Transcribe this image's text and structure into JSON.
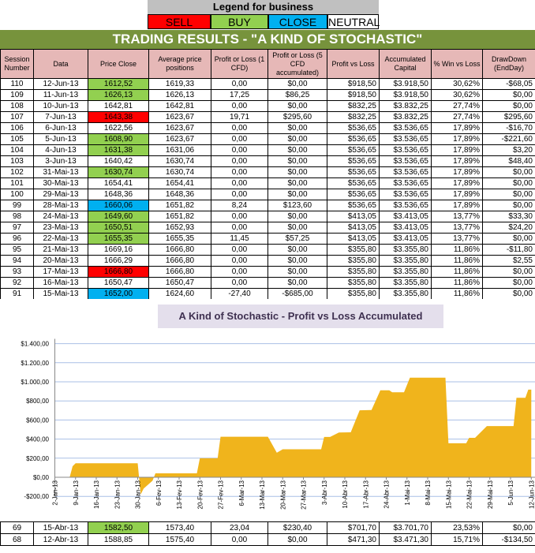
{
  "legend": {
    "title": "Legend for business",
    "items": [
      {
        "label": "SELL",
        "color": "#ff0000"
      },
      {
        "label": "BUY",
        "color": "#92d050"
      },
      {
        "label": "CLOSE",
        "color": "#00b0f0"
      },
      {
        "label": "NEUTRAL",
        "color": "#ffffff"
      }
    ]
  },
  "title": "TRADING RESULTS - \"A KIND OF STOCHASTIC\"",
  "columns": [
    "Session Number",
    "Data",
    "Price Close",
    "Average price positions",
    "Profit or Loss (1 CFD)",
    "Profit or Loss (5 CFD accumulated)",
    "Profit vs Loss",
    "Accumulated Capital",
    "% Win vs Loss",
    "DrawDown (EndDay)"
  ],
  "rows": [
    [
      "110",
      "12-Jun-13",
      "1612,52",
      "1619,33",
      "0,00",
      "$0,00",
      "$918,50",
      "$3.918,50",
      "30,62%",
      "-$68,05",
      "BUY"
    ],
    [
      "109",
      "11-Jun-13",
      "1626,13",
      "1626,13",
      "17,25",
      "$86,25",
      "$918,50",
      "$3.918,50",
      "30,62%",
      "$0,00",
      "BUY"
    ],
    [
      "108",
      "10-Jun-13",
      "1642,81",
      "1642,81",
      "0,00",
      "$0,00",
      "$832,25",
      "$3.832,25",
      "27,74%",
      "$0,00",
      "NEUTRAL"
    ],
    [
      "107",
      "7-Jun-13",
      "1643,38",
      "1623,67",
      "19,71",
      "$295,60",
      "$832,25",
      "$3.832,25",
      "27,74%",
      "$295,60",
      "SELL"
    ],
    [
      "106",
      "6-Jun-13",
      "1622,56",
      "1623,67",
      "0,00",
      "$0,00",
      "$536,65",
      "$3.536,65",
      "17,89%",
      "-$16,70",
      "NEUTRAL"
    ],
    [
      "105",
      "5-Jun-13",
      "1608,90",
      "1623,67",
      "0,00",
      "$0,00",
      "$536,65",
      "$3.536,65",
      "17,89%",
      "-$221,60",
      "BUY"
    ],
    [
      "104",
      "4-Jun-13",
      "1631,38",
      "1631,06",
      "0,00",
      "$0,00",
      "$536,65",
      "$3.536,65",
      "17,89%",
      "$3,20",
      "BUY"
    ],
    [
      "103",
      "3-Jun-13",
      "1640,42",
      "1630,74",
      "0,00",
      "$0,00",
      "$536,65",
      "$3.536,65",
      "17,89%",
      "$48,40",
      "NEUTRAL"
    ],
    [
      "102",
      "31-Mai-13",
      "1630,74",
      "1630,74",
      "0,00",
      "$0,00",
      "$536,65",
      "$3.536,65",
      "17,89%",
      "$0,00",
      "BUY"
    ],
    [
      "101",
      "30-Mai-13",
      "1654,41",
      "1654,41",
      "0,00",
      "$0,00",
      "$536,65",
      "$3.536,65",
      "17,89%",
      "$0,00",
      "NEUTRAL"
    ],
    [
      "100",
      "29-Mai-13",
      "1648,36",
      "1648,36",
      "0,00",
      "$0,00",
      "$536,65",
      "$3.536,65",
      "17,89%",
      "$0,00",
      "NEUTRAL"
    ],
    [
      "99",
      "28-Mai-13",
      "1660,06",
      "1651,82",
      "8,24",
      "$123,60",
      "$536,65",
      "$3.536,65",
      "17,89%",
      "$0,00",
      "CLOSE"
    ],
    [
      "98",
      "24-Mai-13",
      "1649,60",
      "1651,82",
      "0,00",
      "$0,00",
      "$413,05",
      "$3.413,05",
      "13,77%",
      "$33,30",
      "BUY"
    ],
    [
      "97",
      "23-Mai-13",
      "1650,51",
      "1652,93",
      "0,00",
      "$0,00",
      "$413,05",
      "$3.413,05",
      "13,77%",
      "$24,20",
      "BUY"
    ],
    [
      "96",
      "22-Mai-13",
      "1655,35",
      "1655,35",
      "11,45",
      "$57,25",
      "$413,05",
      "$3.413,05",
      "13,77%",
      "$0,00",
      "BUY"
    ],
    [
      "95",
      "21-Mai-13",
      "1669,16",
      "1666,80",
      "0,00",
      "$0,00",
      "$355,80",
      "$3.355,80",
      "11,86%",
      "-$11,80",
      "NEUTRAL"
    ],
    [
      "94",
      "20-Mai-13",
      "1666,29",
      "1666,80",
      "0,00",
      "$0,00",
      "$355,80",
      "$3.355,80",
      "11,86%",
      "$2,55",
      "NEUTRAL"
    ],
    [
      "93",
      "17-Mai-13",
      "1666,80",
      "1666,80",
      "0,00",
      "$0,00",
      "$355,80",
      "$3.355,80",
      "11,86%",
      "$0,00",
      "SELL"
    ],
    [
      "92",
      "16-Mai-13",
      "1650,47",
      "1650,47",
      "0,00",
      "$0,00",
      "$355,80",
      "$3.355,80",
      "11,86%",
      "$0,00",
      "NEUTRAL"
    ],
    [
      "91",
      "15-Mai-13",
      "1652,00",
      "1624,60",
      "-27,40",
      "-$685,00",
      "$355,80",
      "$3.355,80",
      "11,86%",
      "$0,00",
      "CLOSE"
    ]
  ],
  "bottom_rows": [
    [
      "69",
      "15-Abr-13",
      "1582,50",
      "1573,40",
      "23,04",
      "$230,40",
      "$701,70",
      "$3.701,70",
      "23,53%",
      "$0,00",
      "BUY"
    ],
    [
      "68",
      "12-Abr-13",
      "1588,85",
      "1575,40",
      "0,00",
      "$0,00",
      "$471,30",
      "$3.471,30",
      "15,71%",
      "-$134,50",
      "NEUTRAL"
    ]
  ],
  "chart_data": {
    "type": "area",
    "title": "A Kind of Stochastic - Profit vs Loss Accumulated",
    "color": "#f0b41c",
    "grid": true,
    "ylim": [
      -200,
      1400
    ],
    "yticks": [
      "-$200,00",
      "$0,00",
      "$200,00",
      "$400,00",
      "$600,00",
      "$800,00",
      "$1.000,00",
      "$1.200,00",
      "$1.400,00"
    ],
    "xlim": [
      "2013-01-02",
      "2013-06-12"
    ],
    "xticks": [
      "2-Jan-13",
      "9-Jan-13",
      "16-Jan-13",
      "23-Jan-13",
      "30-Jan-13",
      "6-Fev-13",
      "13-Fev-13",
      "20-Fev-13",
      "27-Fev-13",
      "6-Mar-13",
      "13-Mar-13",
      "20-Mar-13",
      "27-Mar-13",
      "3-Abr-13",
      "10-Abr-13",
      "17-Abr-13",
      "24-Abr-13",
      "1-Mai-13",
      "8-Mai-13",
      "15-Mai-13",
      "22-Mai-13",
      "29-Mai-13",
      "5-Jun-13",
      "12-Jun-13"
    ],
    "x": [
      "2013-01-02",
      "2013-01-07",
      "2013-01-08",
      "2013-01-09",
      "2013-01-30",
      "2013-01-31",
      "2013-02-01",
      "2013-02-04",
      "2013-02-05",
      "2013-02-19",
      "2013-02-20",
      "2013-02-26",
      "2013-02-27",
      "2013-03-15",
      "2013-03-18",
      "2013-03-20",
      "2013-04-02",
      "2013-04-03",
      "2013-04-05",
      "2013-04-08",
      "2013-04-12",
      "2013-04-15",
      "2013-04-19",
      "2013-04-22",
      "2013-04-25",
      "2013-04-26",
      "2013-04-30",
      "2013-05-02",
      "2013-05-14",
      "2013-05-15",
      "2013-05-21",
      "2013-05-22",
      "2013-05-24",
      "2013-05-28",
      "2013-06-06",
      "2013-06-07",
      "2013-06-10",
      "2013-06-11",
      "2013-06-12"
    ],
    "y": [
      0,
      0,
      116,
      146,
      146,
      -180,
      -119,
      -36,
      41,
      41,
      199,
      199,
      425,
      425,
      257,
      293,
      293,
      422,
      422,
      469,
      471.3,
      701.7,
      704,
      911,
      911,
      891,
      891,
      1043,
      1043,
      355.8,
      355.8,
      413.05,
      413.05,
      536.65,
      536.65,
      832.25,
      832.25,
      918.5,
      918.5
    ]
  }
}
